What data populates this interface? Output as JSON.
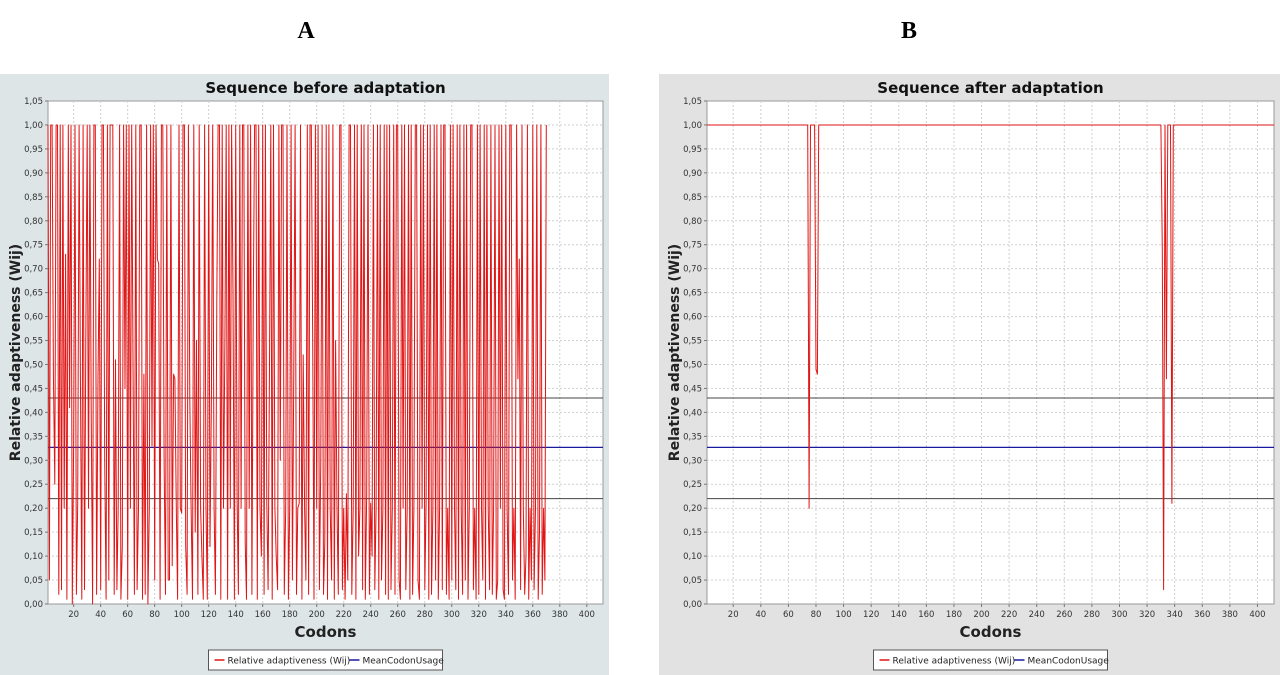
{
  "panel_labels": [
    "A",
    "B"
  ],
  "chart_data": [
    {
      "type": "line",
      "title": "Sequence before adaptation",
      "xlabel": "Codons",
      "ylabel": "Relative adaptiveness (Wij)",
      "x_ticks": [
        20,
        40,
        60,
        80,
        100,
        120,
        140,
        160,
        180,
        200,
        220,
        240,
        260,
        280,
        300,
        320,
        340,
        360,
        380,
        400
      ],
      "y_tick_labels": [
        "0,00",
        "0,05",
        "0,10",
        "0,15",
        "0,20",
        "0,25",
        "0,30",
        "0,35",
        "0,40",
        "0,45",
        "0,50",
        "0,55",
        "0,60",
        "0,65",
        "0,70",
        "0,75",
        "0,80",
        "0,85",
        "0,90",
        "0,95",
        "1,00",
        "1,05"
      ],
      "xlim": [
        1,
        412
      ],
      "ylim": [
        0,
        1.05
      ],
      "grid": true,
      "legend_position": "bottom-center",
      "plot_background": "#ffffff",
      "panel_background": "#dde5e7",
      "series": [
        {
          "name": "Relative adaptiveness (Wij)",
          "color": "#e01515",
          "values": [
            1,
            0.05,
            1,
            1,
            0.48,
            0.25,
            1,
            1,
            0.02,
            1,
            0.03,
            1,
            0.2,
            0.73,
            0.01,
            1,
            0.41,
            1,
            0,
            0.35,
            1,
            0.02,
            0.21,
            1,
            0.48,
            0.01,
            1,
            0.03,
            0.55,
            1,
            0.2,
            1,
            0.4,
            0,
            1,
            1,
            0.02,
            0.47,
            0.72,
            0.03,
            1,
            1,
            0.3,
            0.01,
            1,
            0.05,
            1,
            1,
            1,
            0.02,
            0.51,
            0.03,
            0.2,
            1,
            0.01,
            0.12,
            1,
            0.45,
            1,
            0.01,
            1,
            0.2,
            1,
            0.47,
            0.02,
            1,
            0.03,
            0.2,
            1,
            1,
            0.01,
            0.48,
            0.02,
            1,
            0,
            0.2,
            1,
            0.33,
            1,
            0.05,
            1,
            0.72,
            0.71,
            0.01,
            1,
            1,
            0.3,
            0.02,
            1,
            0.05,
            0.05,
            1,
            0.08,
            0.48,
            0.47,
            0.2,
            0.01,
            1,
            0.2,
            0.19,
            1,
            1,
            0.12,
            0.02,
            1,
            0.43,
            0.2,
            0.01,
            1,
            0.15,
            0.55,
            0.02,
            1,
            0.2,
            0.1,
            0.01,
            1,
            0.2,
            0.01,
            1,
            0.12,
            0.43,
            1,
            0.2,
            0.02,
            0.63,
            1,
            1,
            0.01,
            1,
            0.2,
            0.55,
            1,
            0.01,
            1,
            0.2,
            1,
            0.65,
            0.01,
            1,
            0.22,
            0.02,
            1,
            0.2,
            1,
            1,
            0.13,
            0.01,
            1,
            0.2,
            1,
            0.02,
            0.64,
            1,
            1,
            0.01,
            1,
            0.2,
            0.1,
            1,
            0.02,
            1,
            0.21,
            0.03,
            0.5,
            1,
            0.01,
            1,
            0.2,
            0.1,
            0.03,
            1,
            0.3,
            1,
            1,
            0.02,
            0.2,
            1,
            0.01,
            0.2,
            1,
            0.05,
            0.49,
            1,
            0.02,
            0.2,
            0.21,
            1,
            0.01,
            0.52,
            0.2,
            0.05,
            1,
            0.02,
            1,
            1,
            0.55,
            0.01,
            1,
            0.2,
            1,
            0.03,
            0.3,
            1,
            0.02,
            0.13,
            1,
            0.01,
            1,
            0.2,
            0.05,
            1,
            0.01,
            0.55,
            0.2,
            0.02,
            1,
            1,
            0.03,
            0.2,
            0.01,
            0.23,
            0.05,
            1,
            1,
            0.02,
            0.2,
            1,
            0.01,
            1,
            0.1,
            0.2,
            1,
            0.03,
            1,
            0.01,
            0.23,
            1,
            0.02,
            0.21,
            0.1,
            1,
            0.03,
            0.2,
            1,
            0.01,
            1,
            0.05,
            0.2,
            1,
            0.02,
            1,
            0.01,
            1,
            0.03,
            0.2,
            1,
            0.02,
            1,
            1,
            0.05,
            0.01,
            1,
            0.2,
            1,
            0.03,
            0.2,
            1,
            0.01,
            1,
            0.02,
            0.2,
            1,
            1,
            0.05,
            0.01,
            1,
            0.2,
            1,
            0.03,
            0.21,
            1,
            0.01,
            1,
            0.02,
            0.2,
            1,
            0.05,
            1,
            0.01,
            0.2,
            1,
            0.03,
            1,
            1,
            0.02,
            0.2,
            0.01,
            1,
            0.05,
            1,
            0.2,
            0.03,
            1,
            0.01,
            1,
            0.2,
            0.02,
            1,
            0.05,
            1,
            0.01,
            0.2,
            1,
            1,
            0.03,
            0.2,
            0.01,
            1,
            0.02,
            1,
            0.2,
            0.05,
            1,
            0.01,
            1,
            0.2,
            0.03,
            1,
            0.02,
            0.2,
            1,
            0.01,
            0.05,
            1,
            0.2,
            1,
            0.03,
            0.01,
            1,
            0.2,
            0.02,
            1,
            1,
            0.05,
            0.2,
            0.01,
            1,
            0.47,
            0.72,
            0.03,
            1,
            0.2,
            0.02,
            0.1,
            1,
            0.01,
            0.2,
            0.05,
            1,
            0.03,
            0.2,
            1,
            0.01,
            0.15,
            1,
            0.02,
            0.2,
            0.05,
            1
          ]
        },
        {
          "name": "MeanCodonUsage",
          "color": "#1a1aa0",
          "values": [
            0.327
          ]
        }
      ],
      "reference_lines": [
        {
          "y": 0.43,
          "color": "#444444"
        },
        {
          "y": 0.22,
          "color": "#444444"
        }
      ]
    },
    {
      "type": "line",
      "title": "Sequence after adaptation",
      "xlabel": "Codons",
      "ylabel": "Relative adaptiveness (Wij)",
      "x_ticks": [
        20,
        40,
        60,
        80,
        100,
        120,
        140,
        160,
        180,
        200,
        220,
        240,
        260,
        280,
        300,
        320,
        340,
        360,
        380,
        400
      ],
      "y_tick_labels": [
        "0,00",
        "0,05",
        "0,10",
        "0,15",
        "0,20",
        "0,25",
        "0,30",
        "0,35",
        "0,40",
        "0,45",
        "0,50",
        "0,55",
        "0,60",
        "0,65",
        "0,70",
        "0,75",
        "0,80",
        "0,85",
        "0,90",
        "0,95",
        "1,00",
        "1,05"
      ],
      "xlim": [
        1,
        412
      ],
      "ylim": [
        0,
        1.05
      ],
      "grid": true,
      "legend_position": "bottom-center",
      "plot_background": "#ffffff",
      "panel_background": "#e2e2e2",
      "series": [
        {
          "name": "Relative adaptiveness (Wij)",
          "color": "#e01515",
          "points": [
            [
              1,
              1
            ],
            [
              74,
              1
            ],
            [
              75,
              0.2
            ],
            [
              76,
              1
            ],
            [
              79,
              1
            ],
            [
              80,
              0.49
            ],
            [
              81,
              0.48
            ],
            [
              82,
              1
            ],
            [
              330,
              1
            ],
            [
              331,
              0.74
            ],
            [
              332,
              0.03
            ],
            [
              333,
              1
            ],
            [
              334,
              0.47
            ],
            [
              335,
              1
            ],
            [
              337,
              1
            ],
            [
              338,
              0.21
            ],
            [
              339,
              1
            ],
            [
              412,
              1
            ]
          ]
        },
        {
          "name": "MeanCodonUsage",
          "color": "#1a1aa0",
          "values": [
            0.327
          ]
        }
      ],
      "reference_lines": [
        {
          "y": 0.43,
          "color": "#444444"
        },
        {
          "y": 0.22,
          "color": "#444444"
        }
      ]
    }
  ]
}
